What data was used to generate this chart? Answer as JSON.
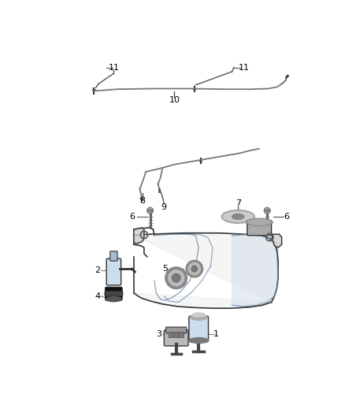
{
  "bg_color": "#ffffff",
  "fig_width": 4.38,
  "fig_height": 5.33,
  "dpi": 100,
  "line_color": "#555555",
  "text_color": "#000000",
  "part_color": "#888888",
  "dark_color": "#333333"
}
